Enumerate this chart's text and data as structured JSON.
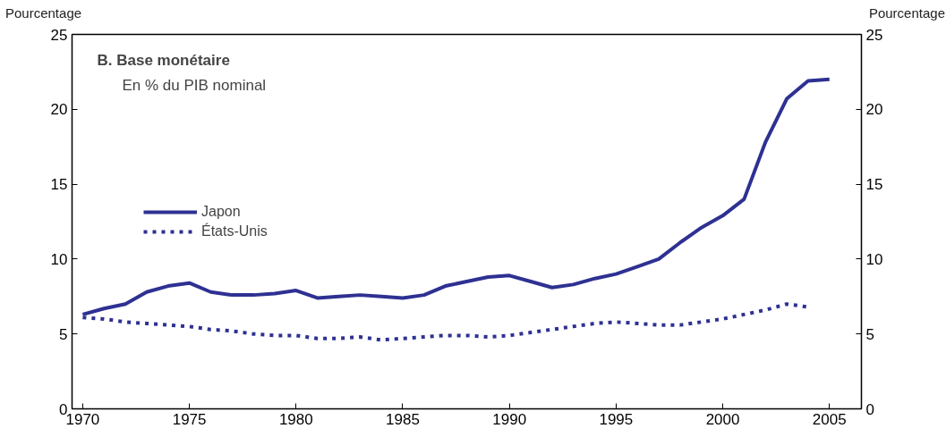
{
  "chart_data": {
    "type": "line",
    "title": "B.  Base monétaire",
    "subtitle": "En % du PIB nominal",
    "ylabel": "Pourcentage",
    "y2label": "Pourcentage",
    "x": [
      1970,
      1971,
      1972,
      1973,
      1974,
      1975,
      1976,
      1977,
      1978,
      1979,
      1980,
      1981,
      1982,
      1983,
      1984,
      1985,
      1986,
      1987,
      1988,
      1989,
      1990,
      1991,
      1992,
      1993,
      1994,
      1995,
      1996,
      1997,
      1998,
      1999,
      2000,
      2001,
      2002,
      2003,
      2004,
      2005
    ],
    "series": [
      {
        "name": "Japon",
        "color": "#2e3192",
        "line_style": "solid",
        "values": [
          6.3,
          6.7,
          7.0,
          7.8,
          8.2,
          8.4,
          7.8,
          7.6,
          7.6,
          7.7,
          7.9,
          7.4,
          7.5,
          7.6,
          7.5,
          7.4,
          7.6,
          8.2,
          8.5,
          8.8,
          8.9,
          8.5,
          8.1,
          8.3,
          8.7,
          9.0,
          9.5,
          10.0,
          11.1,
          12.1,
          12.9,
          14.0,
          17.8,
          20.7,
          21.9,
          22.0
        ]
      },
      {
        "name": "États-Unis",
        "color": "#2e3192",
        "line_style": "dotted",
        "values": [
          6.1,
          6.0,
          5.8,
          5.7,
          5.6,
          5.5,
          5.3,
          5.2,
          5.0,
          4.9,
          4.9,
          4.7,
          4.7,
          4.8,
          4.6,
          4.7,
          4.8,
          4.9,
          4.9,
          4.8,
          4.9,
          5.1,
          5.3,
          5.5,
          5.7,
          5.8,
          5.7,
          5.6,
          5.6,
          5.8,
          6.0,
          6.3,
          6.6,
          7.0,
          6.8,
          null
        ]
      }
    ],
    "xlim": [
      1969.5,
      2006.5
    ],
    "xticks": [
      1970,
      1975,
      1980,
      1985,
      1990,
      1995,
      2000,
      2005
    ],
    "ylim": [
      0,
      25
    ],
    "yticks": [
      0,
      5,
      10,
      15,
      20,
      25
    ],
    "y2lim": [
      0,
      25
    ],
    "y2ticks": [
      0,
      5,
      10,
      15,
      20,
      25
    ],
    "grid": false,
    "legend": "left",
    "marker": "none"
  }
}
